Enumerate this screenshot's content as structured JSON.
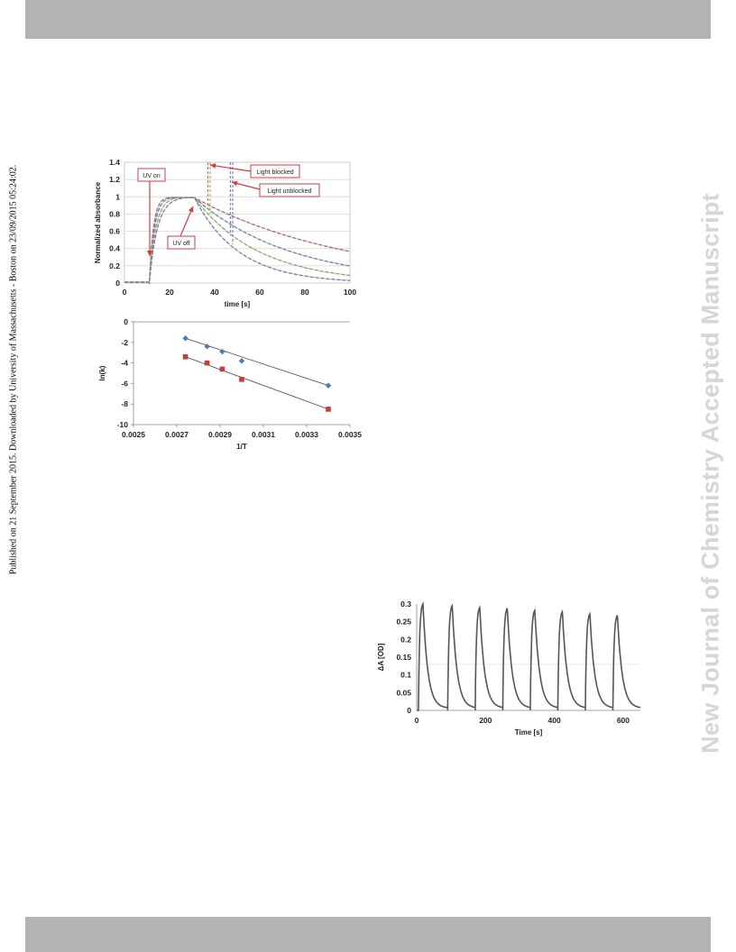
{
  "header": {
    "bar_color": "#b3b3b3"
  },
  "footer": {
    "bar_color": "#b3b3b3"
  },
  "side_note": "Published on 21 September 2015. Downloaded by University of Massachusetts - Boston on 23/09/2015 05:24:02.",
  "watermark": "New Journal of Chemistry Accepted Manuscript",
  "chart_data": [
    {
      "type": "line",
      "xlabel": "time [s]",
      "ylabel": "Normalized absorbance",
      "xlim": [
        0,
        100
      ],
      "ylim": [
        0,
        1.4
      ],
      "x_ticks": [
        "0",
        "20",
        "40",
        "60",
        "80",
        "100"
      ],
      "y_ticks": [
        "0",
        "0.2",
        "0.4",
        "0.6",
        "0.8",
        "1",
        "1.2",
        "1.4"
      ],
      "grid": true,
      "annotations": [
        {
          "text": "UV on",
          "x": 11,
          "y": 0.2
        },
        {
          "text": "UV off",
          "x": 31,
          "y": 0.98
        },
        {
          "text": "Light blocked",
          "x": 37,
          "y": 1.45
        },
        {
          "text": "Light unblocked",
          "x": 47,
          "y": 1.22
        }
      ],
      "uv_on": 11,
      "uv_off": 31,
      "decay_end": [
        0.37,
        0.2,
        0.09,
        0.03
      ],
      "series_colors": [
        "#c46a6a",
        "#6a8cc4",
        "#9ab86a",
        "#8f7ac0"
      ],
      "blocked_interval": {
        "series": 0,
        "start": 37,
        "end": 47
      }
    },
    {
      "type": "scatter",
      "xlabel": "1/T",
      "ylabel": "ln(k)",
      "xlim": [
        0.0025,
        0.0035
      ],
      "ylim": [
        -10,
        0
      ],
      "x_ticks": [
        "0.0025",
        "0.0027",
        "0.0029",
        "0.0031",
        "0.0033",
        "0.0035"
      ],
      "y_ticks": [
        "0",
        "-2",
        "-4",
        "-6",
        "-8",
        "-10"
      ],
      "grid": false,
      "series": [
        {
          "color": "#4a7ab8",
          "marker": "diamond",
          "x": [
            0.00274,
            0.00284,
            0.00291,
            0.003,
            0.0034
          ],
          "y": [
            -1.6,
            -2.4,
            -2.9,
            -3.8,
            -6.2
          ],
          "fit": [
            [
              0.00274,
              -1.6
            ],
            [
              0.0034,
              -6.2
            ]
          ]
        },
        {
          "color": "#c04040",
          "marker": "square",
          "x": [
            0.00274,
            0.00284,
            0.00291,
            0.003,
            0.0034
          ],
          "y": [
            -3.4,
            -4.0,
            -4.6,
            -5.6,
            -8.5
          ],
          "fit": [
            [
              0.00274,
              -3.4
            ],
            [
              0.0034,
              -8.5
            ]
          ]
        }
      ]
    },
    {
      "type": "line",
      "xlabel": "Time [s]",
      "ylabel": "ΔA [OD]",
      "xlim": [
        0,
        650
      ],
      "ylim": [
        0,
        0.3
      ],
      "x_ticks": [
        "0",
        "200",
        "400",
        "600"
      ],
      "y_ticks": [
        "0",
        "0.05",
        "0.1",
        "0.15",
        "0.2",
        "0.25",
        "0.3"
      ],
      "grid": false,
      "line_color": "#555555",
      "cycles": [
        {
          "start": 5,
          "peak_t": 18,
          "peak": 0.3,
          "end": 90
        },
        {
          "start": 90,
          "peak_t": 103,
          "peak": 0.295,
          "end": 170
        },
        {
          "start": 170,
          "peak_t": 183,
          "peak": 0.29,
          "end": 250
        },
        {
          "start": 250,
          "peak_t": 263,
          "peak": 0.288,
          "end": 330
        },
        {
          "start": 330,
          "peak_t": 343,
          "peak": 0.282,
          "end": 410
        },
        {
          "start": 410,
          "peak_t": 423,
          "peak": 0.278,
          "end": 490
        },
        {
          "start": 490,
          "peak_t": 503,
          "peak": 0.272,
          "end": 570
        },
        {
          "start": 570,
          "peak_t": 583,
          "peak": 0.268,
          "end": 650
        }
      ]
    }
  ]
}
